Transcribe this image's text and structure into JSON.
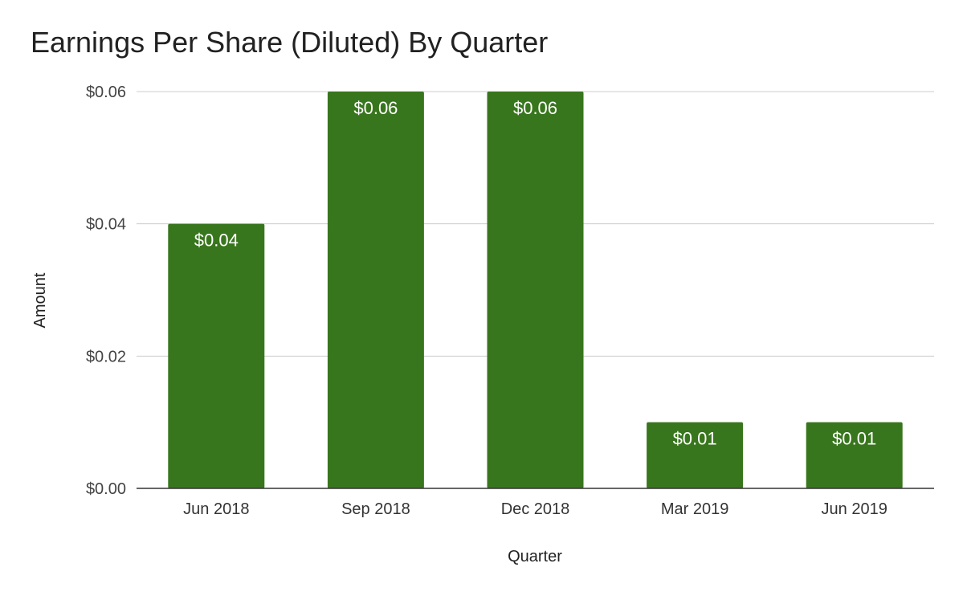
{
  "chart_data": {
    "type": "bar",
    "title": "Earnings Per Share (Diluted) By Quarter",
    "xlabel": "Quarter",
    "ylabel": "Amount",
    "categories": [
      "Jun 2018",
      "Sep 2018",
      "Dec 2018",
      "Mar 2019",
      "Jun 2019"
    ],
    "values": [
      0.04,
      0.06,
      0.06,
      0.01,
      0.01
    ],
    "data_labels": [
      "$0.04",
      "$0.06",
      "$0.06",
      "$0.01",
      "$0.01"
    ],
    "ylim": [
      0,
      0.06
    ],
    "yticks": [
      0,
      0.02,
      0.04,
      0.06
    ],
    "ytick_labels": [
      "$0.00",
      "$0.02",
      "$0.04",
      "$0.06"
    ],
    "grid": true,
    "bar_color": "#38761d"
  }
}
